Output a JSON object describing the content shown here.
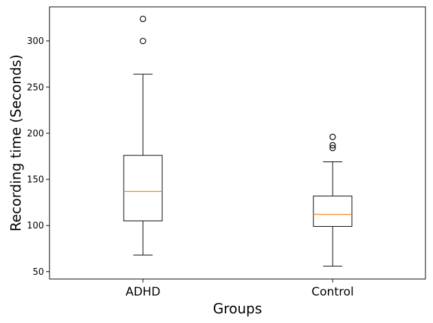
{
  "chart_data": {
    "type": "boxplot",
    "title": "",
    "xlabel": "Groups",
    "ylabel": "Recording time (Seconds)",
    "ylim": [
      42,
      337
    ],
    "yticks": [
      50,
      100,
      150,
      200,
      250,
      300
    ],
    "grid": false,
    "categories": [
      "ADHD",
      "Control"
    ],
    "series": [
      {
        "whisker_low": 68,
        "q1": 105,
        "median": 137,
        "q3": 176,
        "whisker_high": 264,
        "outliers": [
          300,
          324
        ]
      },
      {
        "whisker_low": 56,
        "q1": 99,
        "median": 112,
        "q3": 132,
        "whisker_high": 169,
        "outliers": [
          184,
          187,
          196
        ]
      }
    ],
    "colors": {
      "box": "#000000",
      "median": "#ff7f0e",
      "outlier": "#000000"
    }
  }
}
